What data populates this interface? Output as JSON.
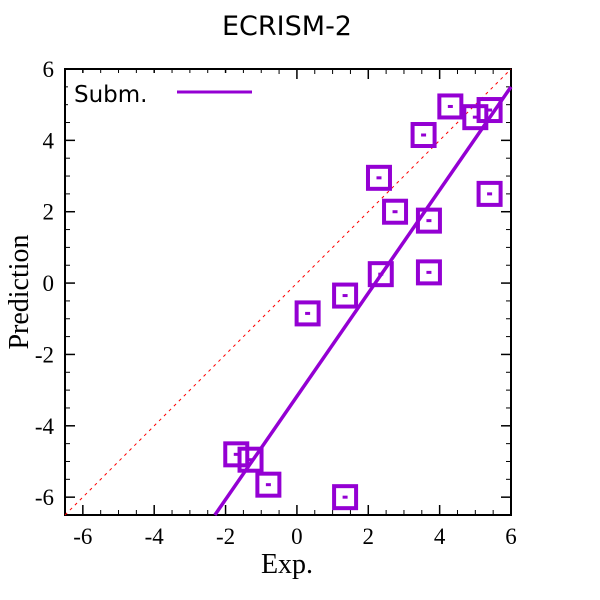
{
  "chart_data": {
    "type": "scatter",
    "title": "ECRISM-2",
    "xlabel": "Exp.",
    "ylabel": "Prediction",
    "xlim": [
      -6.5,
      6
    ],
    "ylim": [
      -6.5,
      6
    ],
    "xticks": [
      -6,
      -4,
      -2,
      0,
      2,
      4,
      6
    ],
    "yticks": [
      -6,
      -4,
      -2,
      0,
      2,
      4,
      6
    ],
    "x_tick_labels": [
      "-6",
      "-4",
      "-2",
      "0",
      "2",
      "4",
      "6"
    ],
    "y_tick_labels": [
      "-6",
      "-4",
      "-2",
      "0",
      "2",
      "4",
      "6"
    ],
    "legend": {
      "position": "top-left",
      "entries": [
        "Subm."
      ]
    },
    "series": [
      {
        "name": "Subm.",
        "marker": "square",
        "color": "#9400d3",
        "points": [
          {
            "x": -1.7,
            "y": -4.8
          },
          {
            "x": -1.3,
            "y": -4.95
          },
          {
            "x": -0.8,
            "y": -5.65
          },
          {
            "x": 0.3,
            "y": -0.85
          },
          {
            "x": 1.35,
            "y": -0.35
          },
          {
            "x": 1.35,
            "y": -6.0
          },
          {
            "x": 2.3,
            "y": 2.95
          },
          {
            "x": 2.35,
            "y": 0.25
          },
          {
            "x": 2.75,
            "y": 2.0
          },
          {
            "x": 3.55,
            "y": 4.15
          },
          {
            "x": 3.7,
            "y": 1.75
          },
          {
            "x": 3.7,
            "y": 0.3
          },
          {
            "x": 4.3,
            "y": 4.95
          },
          {
            "x": 5.0,
            "y": 4.65
          },
          {
            "x": 5.4,
            "y": 4.85
          },
          {
            "x": 5.4,
            "y": 2.5
          }
        ]
      }
    ],
    "fit_line": {
      "name": "Subm.",
      "x": [
        -2.3,
        6.0
      ],
      "y": [
        -6.5,
        5.5
      ],
      "color": "#9400d3"
    },
    "reference_line": {
      "type": "y=x",
      "x": [
        -6.5,
        6.0
      ],
      "y": [
        -6.5,
        6.0
      ],
      "color": "#ff0000",
      "style": "dashed"
    }
  }
}
